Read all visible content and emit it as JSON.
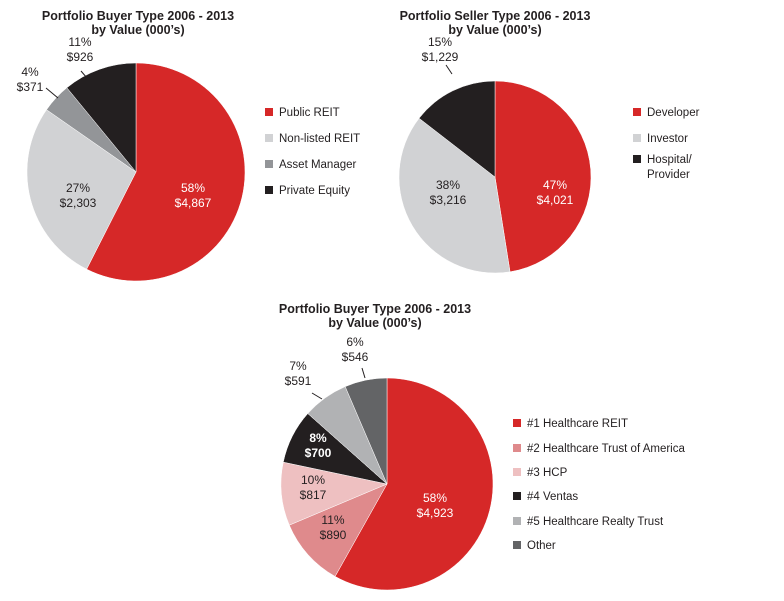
{
  "chart_data": [
    {
      "type": "pie",
      "title": [
        "Portfolio Buyer Type 2006 - 2013",
        "by Value (000’s)"
      ],
      "legend_position": "right",
      "slices": [
        {
          "name": "Public REIT",
          "value": 4867,
          "percent_label": "58%",
          "value_label": "$4,867",
          "color": "#d62828"
        },
        {
          "name": "Non-listed REIT",
          "value": 2303,
          "percent_label": "27%",
          "value_label": "$2,303",
          "color": "#d1d2d4"
        },
        {
          "name": "Asset Manager",
          "value": 371,
          "percent_label": "4%",
          "value_label": "$371",
          "color": "#939598"
        },
        {
          "name": "Private Equity",
          "value": 926,
          "percent_label": "11%",
          "value_label": "$926",
          "color": "#231f20"
        }
      ]
    },
    {
      "type": "pie",
      "title": [
        "Portfolio Seller Type 2006 - 2013",
        "by Value (000’s)"
      ],
      "legend_position": "right",
      "slices": [
        {
          "name": "Developer",
          "value": 4021,
          "percent_label": "47%",
          "value_label": "$4,021",
          "color": "#d62828"
        },
        {
          "name": "Investor",
          "value": 3216,
          "percent_label": "38%",
          "value_label": "$3,216",
          "color": "#d1d2d4"
        },
        {
          "name": "Hospital/ Provider",
          "legend_lines": [
            "Hospital/",
            "Provider"
          ],
          "value": 1229,
          "percent_label": "15%",
          "value_label": "$1,229",
          "color": "#231f20"
        }
      ]
    },
    {
      "type": "pie",
      "title": [
        "Portfolio Buyer Type 2006 - 2013",
        "by Value (000’s)"
      ],
      "legend_position": "right",
      "slices": [
        {
          "name": "#1 Healthcare REIT",
          "value": 4923,
          "percent_label": "58%",
          "value_label": "$4,923",
          "color": "#d62828"
        },
        {
          "name": "#2 Healthcare Trust of America",
          "value": 890,
          "percent_label": "11%",
          "value_label": "$890",
          "color": "#df8a8c"
        },
        {
          "name": "#3 HCP",
          "value": 817,
          "percent_label": "10%",
          "value_label": "$817",
          "color": "#eec0c1"
        },
        {
          "name": "#4 Ventas",
          "value": 700,
          "percent_label": "8%",
          "value_label": "$700",
          "color": "#231f20"
        },
        {
          "name": "#5 Healthcare Realty Trust",
          "value": 591,
          "percent_label": "7%",
          "value_label": "$591",
          "color": "#b1b2b4"
        },
        {
          "name": "Other",
          "value": 546,
          "percent_label": "6%",
          "value_label": "$546",
          "color": "#636466"
        }
      ]
    }
  ]
}
